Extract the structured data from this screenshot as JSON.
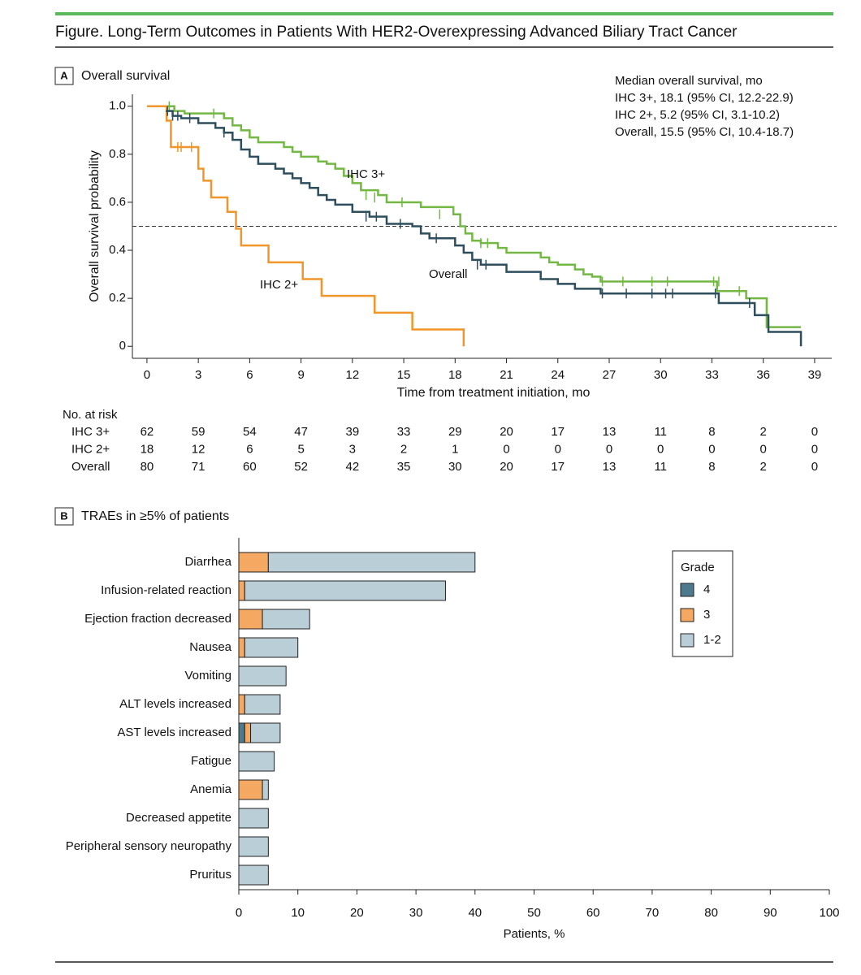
{
  "figure_title": "Figure. Long-Term Outcomes in Patients With HER2-Overexpressing Advanced Biliary Tract Cancer",
  "chart_data": [
    {
      "type": "step",
      "panel": "A",
      "title": "Overall survival",
      "x_label": "Time from treatment initiation, mo",
      "y_label": "Overall survival probability",
      "xlim": [
        -0.85,
        40
      ],
      "ylim": [
        -0.05,
        1.05
      ],
      "xticks": [
        0,
        3,
        6,
        9,
        12,
        15,
        18,
        21,
        24,
        27,
        30,
        33,
        36,
        39
      ],
      "yticks": [
        0,
        0.2,
        0.4,
        0.6,
        0.8,
        {
          "value": 1,
          "label": "1.0"
        }
      ],
      "reference_line": 0.5,
      "annotation": {
        "title": "Median overall survival, mo",
        "lines": [
          "IHC 3+, 18.1 (95% CI, 12.2-22.9)",
          "IHC 2+, 5.2 (95% CI, 3.1-10.2)",
          "Overall, 15.5 (95% CI, 10.4-18.7)"
        ]
      },
      "series": [
        {
          "name": "IHC 3+",
          "color": "#72b843",
          "x": [
            1.2,
            1.6,
            2.2,
            4.5,
            5,
            5.5,
            6,
            6.5,
            8,
            8.5,
            9,
            10,
            10.5,
            11,
            11.5,
            12,
            12.5,
            13.5,
            14,
            16,
            17.9,
            18.3,
            18.6,
            19,
            19.5,
            20.5,
            21,
            23,
            23.5,
            24,
            25,
            25.5,
            26,
            26.5,
            33.3,
            35,
            36.2,
            38.2
          ],
          "y": [
            1.0,
            0.98,
            0.97,
            0.95,
            0.92,
            0.9,
            0.87,
            0.85,
            0.83,
            0.81,
            0.79,
            0.77,
            0.76,
            0.74,
            0.71,
            0.68,
            0.65,
            0.63,
            0.6,
            0.58,
            0.55,
            0.5,
            0.47,
            0.44,
            0.43,
            0.41,
            0.39,
            0.37,
            0.35,
            0.34,
            0.32,
            0.3,
            0.29,
            0.27,
            0.23,
            0.2,
            0.08,
            0.08
          ],
          "censored": {
            "x": [
              1.3,
              3.9,
              12.8,
              13.3,
              14.9,
              17.1,
              19.5,
              19.9,
              26.6,
              27.8,
              29.5,
              30.4,
              33.1,
              33.4,
              34.6
            ],
            "y": [
              1.0,
              0.97,
              0.63,
              0.62,
              0.6,
              0.55,
              0.43,
              0.43,
              0.27,
              0.27,
              0.27,
              0.27,
              0.27,
              0.27,
              0.23
            ]
          }
        },
        {
          "name": "IHC 2+",
          "color": "#f0962a",
          "x": [
            0,
            1.15,
            1.4,
            3.0,
            3.3,
            3.75,
            4.7,
            5.2,
            5.5,
            7.1,
            9.1,
            10.2,
            13.3,
            15.5,
            18.5
          ],
          "y": [
            1.0,
            0.94,
            0.83,
            0.74,
            0.69,
            0.62,
            0.56,
            0.49,
            0.42,
            0.35,
            0.28,
            0.21,
            0.14,
            0.07,
            0
          ],
          "censored": {
            "x": [
              1.8,
              2.0,
              2.6
            ],
            "y": [
              0.83,
              0.83,
              0.83
            ]
          }
        },
        {
          "name": "Overall",
          "color": "#2e4e5e",
          "x": [
            1.1,
            1.5,
            2,
            3,
            4,
            4.5,
            5,
            5.5,
            6,
            6.5,
            7.5,
            8,
            8.5,
            9,
            9.5,
            10,
            10.5,
            11,
            12,
            13,
            14,
            15.5,
            16,
            16.5,
            18,
            18.5,
            19,
            19.5,
            21,
            23,
            24,
            25,
            26.5,
            33.4,
            35.5,
            36.3,
            38.2
          ],
          "y": [
            0.98,
            0.96,
            0.95,
            0.93,
            0.91,
            0.89,
            0.86,
            0.82,
            0.79,
            0.76,
            0.74,
            0.72,
            0.7,
            0.68,
            0.66,
            0.63,
            0.61,
            0.59,
            0.56,
            0.54,
            0.51,
            0.5,
            0.47,
            0.45,
            0.42,
            0.39,
            0.36,
            0.34,
            0.31,
            0.28,
            0.26,
            0.24,
            0.22,
            0.18,
            0.13,
            0.06,
            0
          ],
          "censored": {
            "x": [
              1.2,
              1.5,
              1.8,
              2.5,
              4.5,
              12.8,
              13.4,
              14.8,
              16.9,
              19.3,
              19.8,
              26.6,
              28,
              29.5,
              30.3,
              30.7,
              33.2,
              35.2
            ],
            "y": [
              0.98,
              0.96,
              0.96,
              0.95,
              0.89,
              0.54,
              0.54,
              0.51,
              0.45,
              0.34,
              0.34,
              0.22,
              0.22,
              0.22,
              0.22,
              0.22,
              0.22,
              0.18
            ]
          }
        }
      ],
      "at_risk": {
        "title": "No. at risk",
        "values": [
          [
            62,
            59,
            54,
            47,
            39,
            33,
            29,
            20,
            17,
            13,
            11,
            8,
            2,
            0
          ],
          [
            18,
            12,
            6,
            5,
            3,
            2,
            1,
            0,
            0,
            0,
            0,
            0,
            0,
            0
          ],
          [
            80,
            71,
            60,
            52,
            42,
            35,
            30,
            20,
            17,
            13,
            11,
            8,
            2,
            0
          ]
        ]
      }
    },
    {
      "type": "stacked-barh",
      "panel": "B",
      "title": "TRAEs in ≥5% of patients",
      "x_label": "Patients, %",
      "categories": [
        "Diarrhea",
        "Infusion-related reaction",
        "Ejection fraction decreased",
        "Nausea",
        "Vomiting",
        "ALT levels increased",
        "AST levels increased",
        "Fatigue",
        "Anemia",
        "Decreased appetite",
        "Peripheral sensory neuropathy",
        "Pruritus"
      ],
      "xlim": [
        0,
        100
      ],
      "xticks": [
        0,
        10,
        20,
        30,
        40,
        50,
        60,
        70,
        80,
        90,
        100
      ],
      "legend": "upper right",
      "legend_title": "Grade",
      "series": [
        {
          "name": "4",
          "color": "#4d7a8c",
          "values": [
            0,
            0,
            0,
            0,
            0,
            0,
            1,
            0,
            0,
            0,
            0,
            0
          ]
        },
        {
          "name": "3",
          "color": "#f4a862",
          "values": [
            5,
            1,
            4,
            1,
            0,
            1,
            1,
            0,
            4,
            0,
            0,
            0
          ]
        },
        {
          "name": "1-2",
          "color": "#b9ced7",
          "values": [
            35,
            34,
            8,
            9,
            8,
            6,
            5,
            6,
            1,
            5,
            5,
            5
          ]
        }
      ]
    }
  ]
}
